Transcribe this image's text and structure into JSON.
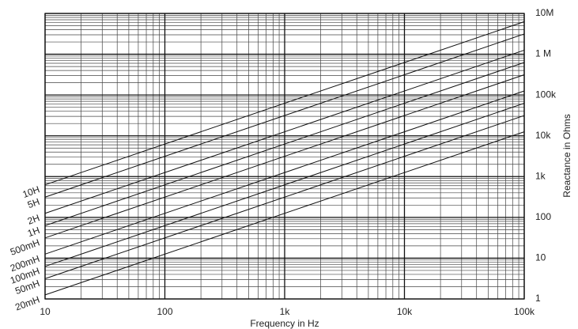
{
  "chart_data": {
    "type": "line",
    "x_label": "Frequency in Hz",
    "y_label": "Reactance in Ohms",
    "log_x": true,
    "log_y": true,
    "grid": true,
    "minor_grid": true,
    "x": [
      10,
      100000
    ],
    "xlim": [
      10,
      100000
    ],
    "xticks": [
      10,
      100,
      {
        "value": 1000,
        "label": "1k"
      },
      {
        "value": 10000,
        "label": "10k"
      },
      {
        "value": 100000,
        "label": "100k"
      }
    ],
    "ylim": [
      1,
      10000000
    ],
    "yticks": [
      1,
      10,
      100,
      {
        "value": 1000,
        "label": "1k"
      },
      {
        "value": 10000,
        "label": "10k"
      },
      {
        "value": 100000,
        "label": "100k"
      },
      {
        "value": 1000000,
        "label": "1 M"
      },
      {
        "value": 10000000,
        "label": "10M"
      }
    ],
    "series": [
      {
        "name": "10H",
        "color": "#111",
        "values": [
          628.3,
          6283185
        ]
      },
      {
        "name": "5H",
        "color": "#111",
        "values": [
          314.2,
          3141593
        ]
      },
      {
        "name": "2H",
        "color": "#111",
        "values": [
          125.7,
          1256637
        ]
      },
      {
        "name": "1H",
        "color": "#111",
        "values": [
          62.83,
          628319
        ]
      },
      {
        "name": "500mH",
        "color": "#111",
        "values": [
          31.42,
          314159
        ]
      },
      {
        "name": "200mH",
        "color": "#111",
        "values": [
          12.57,
          125664
        ]
      },
      {
        "name": "100mH",
        "color": "#111",
        "values": [
          6.283,
          62832
        ]
      },
      {
        "name": "50mH",
        "color": "#111",
        "values": [
          3.142,
          31416
        ]
      },
      {
        "name": "20mH",
        "color": "#111",
        "values": [
          1.257,
          12566
        ]
      }
    ]
  }
}
